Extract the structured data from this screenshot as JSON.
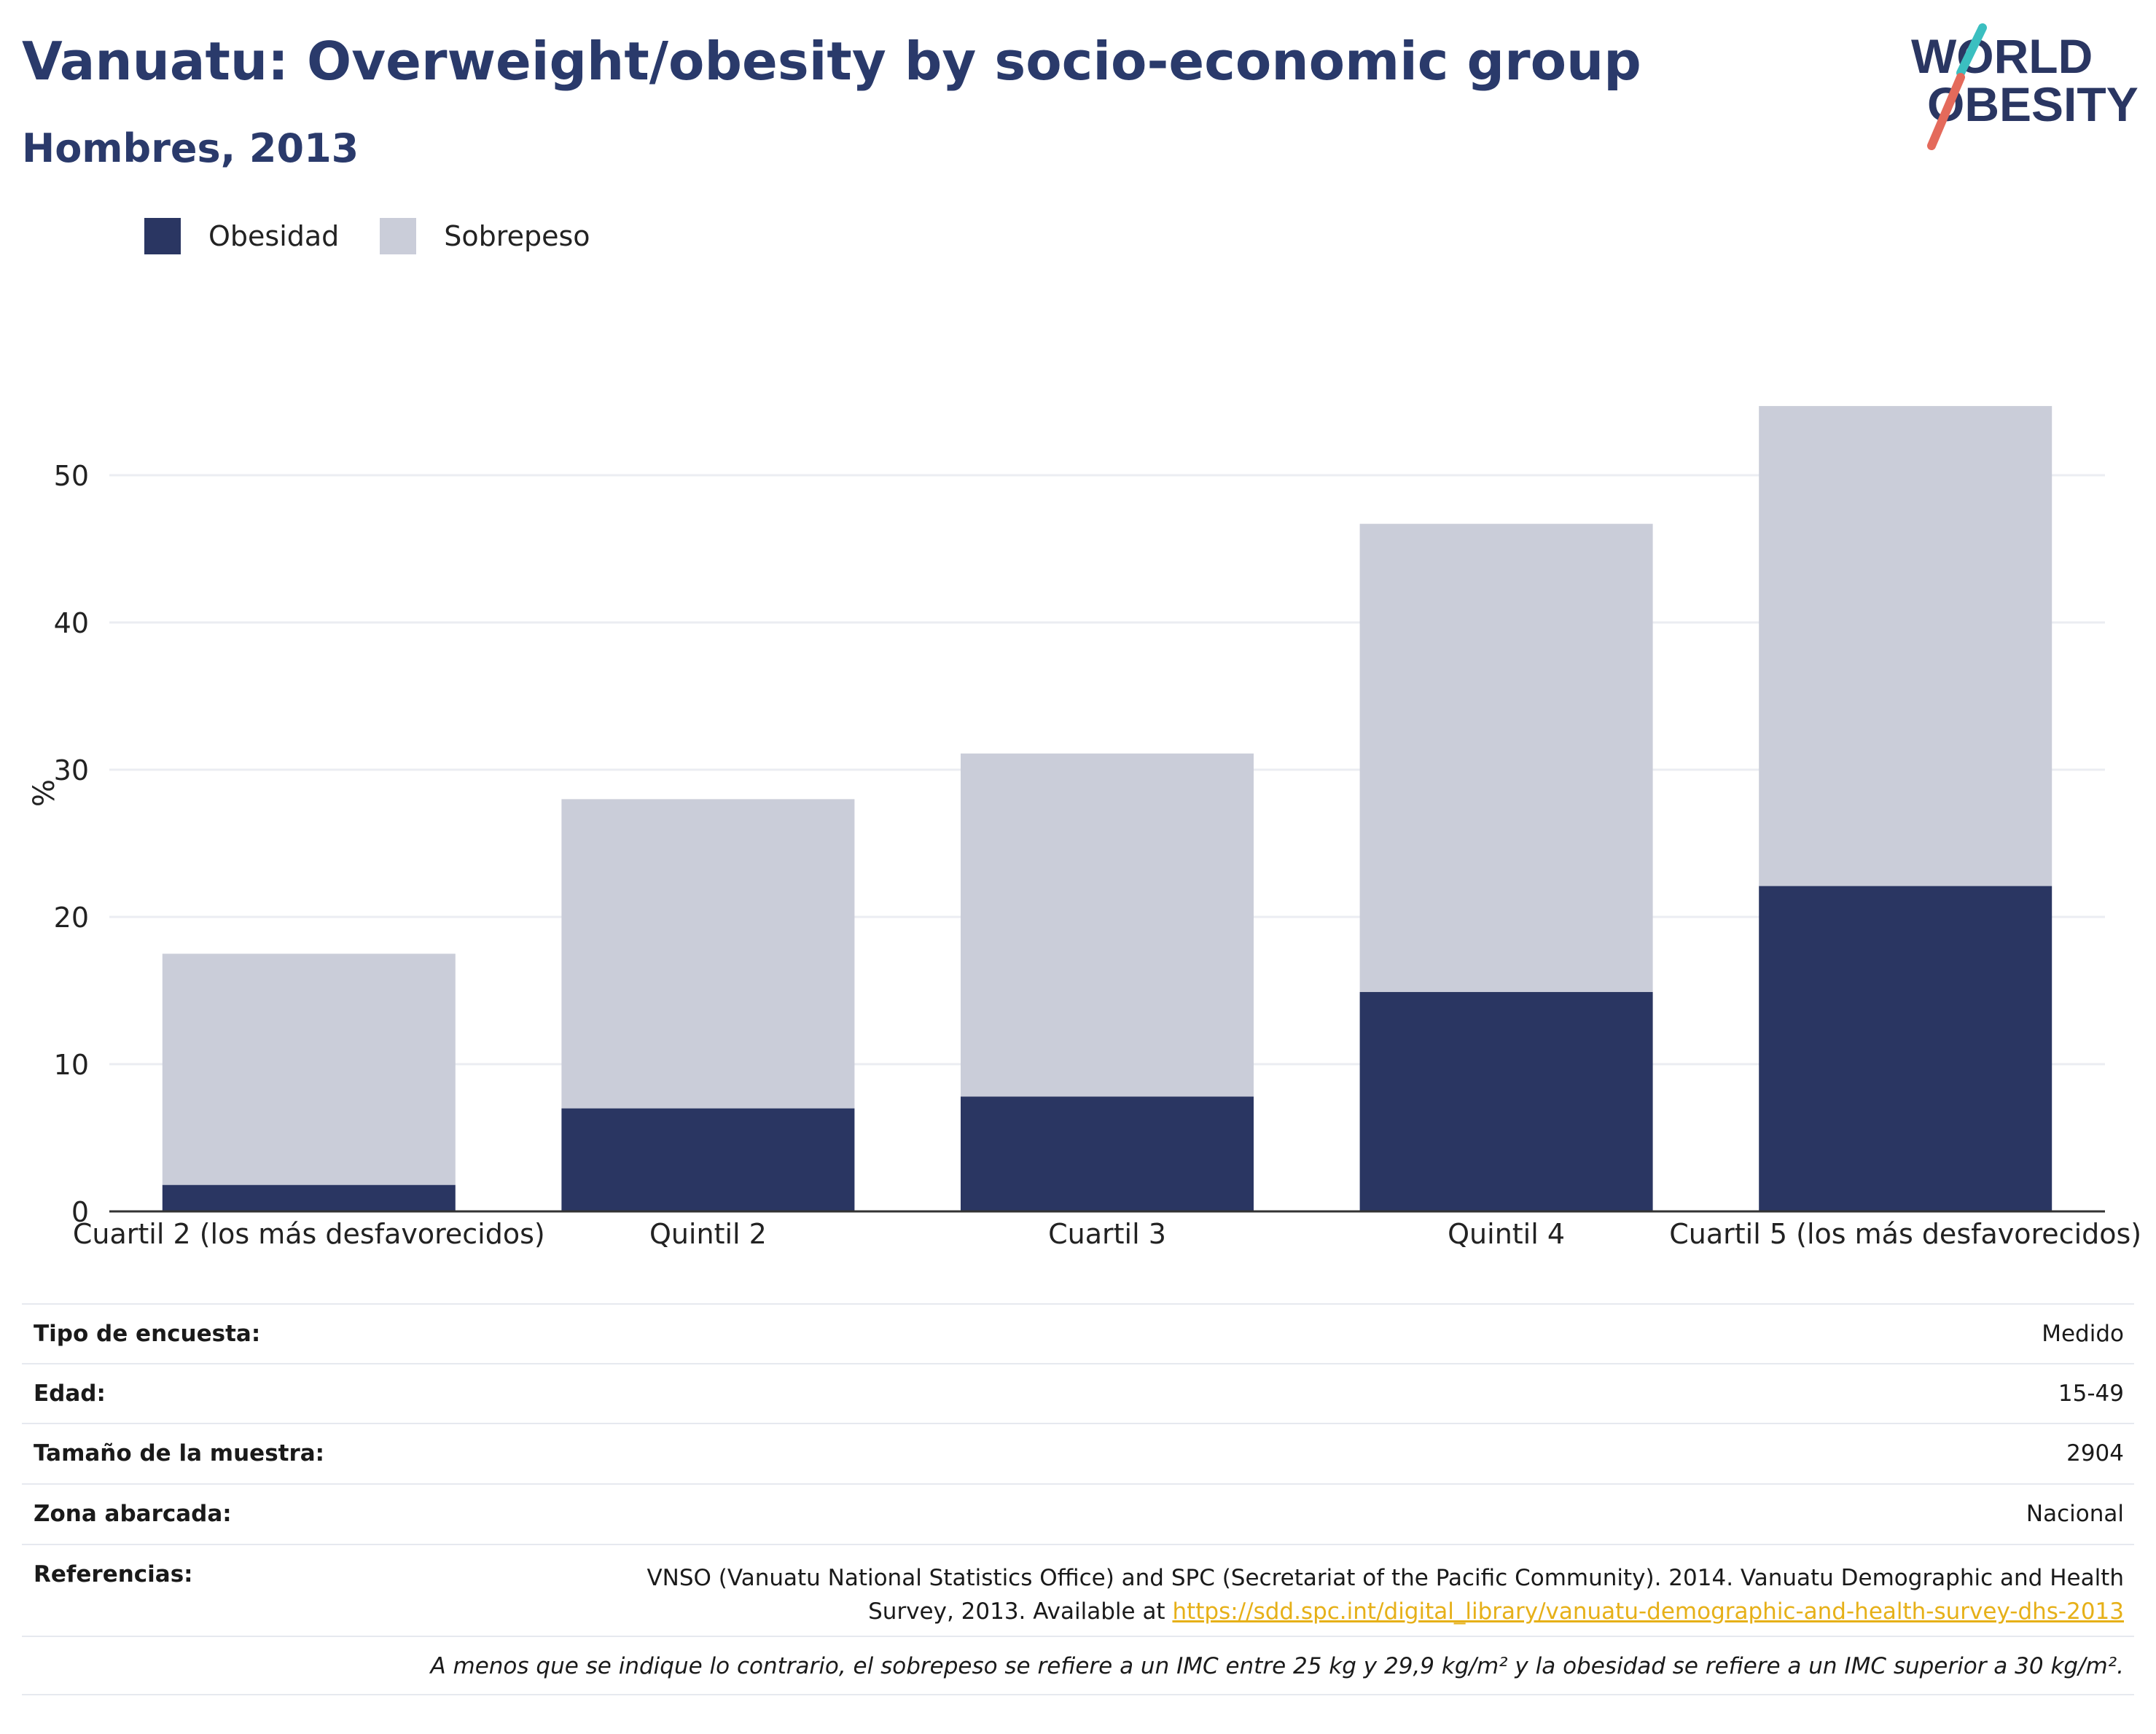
{
  "header": {
    "title": "Vanuatu: Overweight/obesity by socio-economic group",
    "subtitle": "Hombres, 2013"
  },
  "logo": {
    "line1": "WORLD",
    "line2": "OBESITY"
  },
  "colors": {
    "obesity": "#2a3662",
    "overweight": "#cacdd9",
    "title": "#2a3a6b",
    "grid": "#ebedf2",
    "link": "#e6b018"
  },
  "chart_data": {
    "type": "bar",
    "stacked": true,
    "categories": [
      "Cuartil 2 (los más desfavorecidos)",
      "Quintil 2",
      "Cuartil 3",
      "Quintil 4",
      "Cuartil 5 (los más desfavorecidos)"
    ],
    "series": [
      {
        "name": "Obesidad",
        "values": [
          1.8,
          7.0,
          7.8,
          14.9,
          22.1
        ]
      },
      {
        "name": "Sobrepeso",
        "values": [
          15.7,
          21.0,
          23.3,
          31.8,
          32.6
        ]
      }
    ],
    "ylabel": "%",
    "ylim": [
      0,
      57
    ],
    "yticks": [
      0,
      10,
      20,
      30,
      40,
      50
    ],
    "grid": true,
    "legend": "top-left"
  },
  "info": {
    "rows": [
      {
        "label": "Tipo de encuesta:",
        "value": "Medido"
      },
      {
        "label": "Edad:",
        "value": "15-49"
      },
      {
        "label": "Tamaño de la muestra:",
        "value": "2904"
      },
      {
        "label": "Zona abarcada:",
        "value": "Nacional"
      }
    ],
    "references_label": "Referencias:",
    "references_text": "VNSO (Vanuatu National Statistics Office) and SPC (Secretariat of the Pacific Community). 2014. Vanuatu Demographic and Health Survey, 2013. Available at ",
    "references_link": "https://sdd.spc.int/digital_library/vanuatu-demographic-and-health-survey-dhs-2013",
    "note": "A menos que se indique lo contrario, el sobrepeso se refiere a un IMC entre 25 kg y 29,9 kg/m² y la obesidad se refiere a un IMC superior a 30 kg/m²."
  }
}
